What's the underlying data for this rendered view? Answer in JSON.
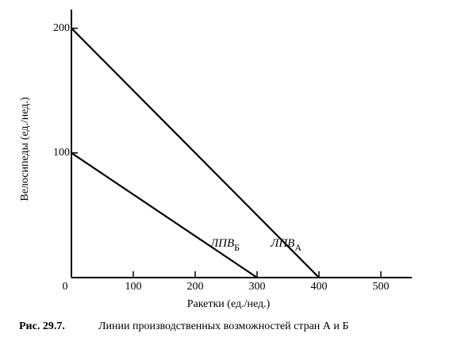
{
  "chart_data": {
    "type": "line",
    "y_label": "Велосипеды (ед./нед.)",
    "x_label": "Ракетки (ед./нед.)",
    "caption_label": "Рис. 29.7.",
    "caption": "Линии производственных возможностей стран А и Б",
    "series": [
      {
        "name": "ЛПВ",
        "subscript": "А",
        "color": "#000000",
        "x": [
          0,
          400
        ],
        "values": [
          200,
          0
        ]
      },
      {
        "name": "ЛПВ",
        "subscript": "Б",
        "color": "#000000",
        "x": [
          0,
          300
        ],
        "values": [
          100,
          0
        ]
      }
    ],
    "xlim": [
      0,
      550
    ],
    "ylim": [
      0,
      215
    ],
    "xticks": [
      0,
      100,
      200,
      300,
      400,
      500
    ],
    "yticks": [
      100,
      200
    ]
  }
}
